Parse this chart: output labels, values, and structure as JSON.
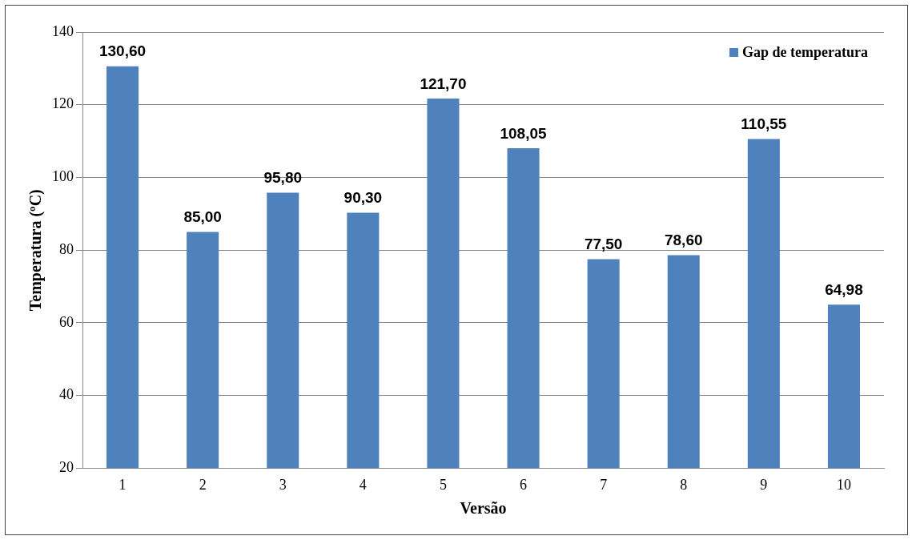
{
  "chart_data": {
    "type": "bar",
    "xlabel": "Versão",
    "ylabel": "Temperatura (ºC)",
    "categories": [
      "1",
      "2",
      "3",
      "4",
      "5",
      "6",
      "7",
      "8",
      "9",
      "10"
    ],
    "series": [
      {
        "name": "Gap de temperatura",
        "color": "#4f81bd",
        "values": [
          130.6,
          85.0,
          95.8,
          90.3,
          121.7,
          108.05,
          77.5,
          78.6,
          110.55,
          64.98
        ],
        "value_labels": [
          "130,60",
          "85,00",
          "95,80",
          "90,30",
          "121,70",
          "108,05",
          "77,50",
          "78,60",
          "110,55",
          "64,98"
        ]
      }
    ],
    "ylim": [
      20,
      140
    ],
    "yticks": [
      20,
      40,
      60,
      80,
      100,
      120,
      140
    ],
    "grid": "y",
    "legend": "top right"
  }
}
